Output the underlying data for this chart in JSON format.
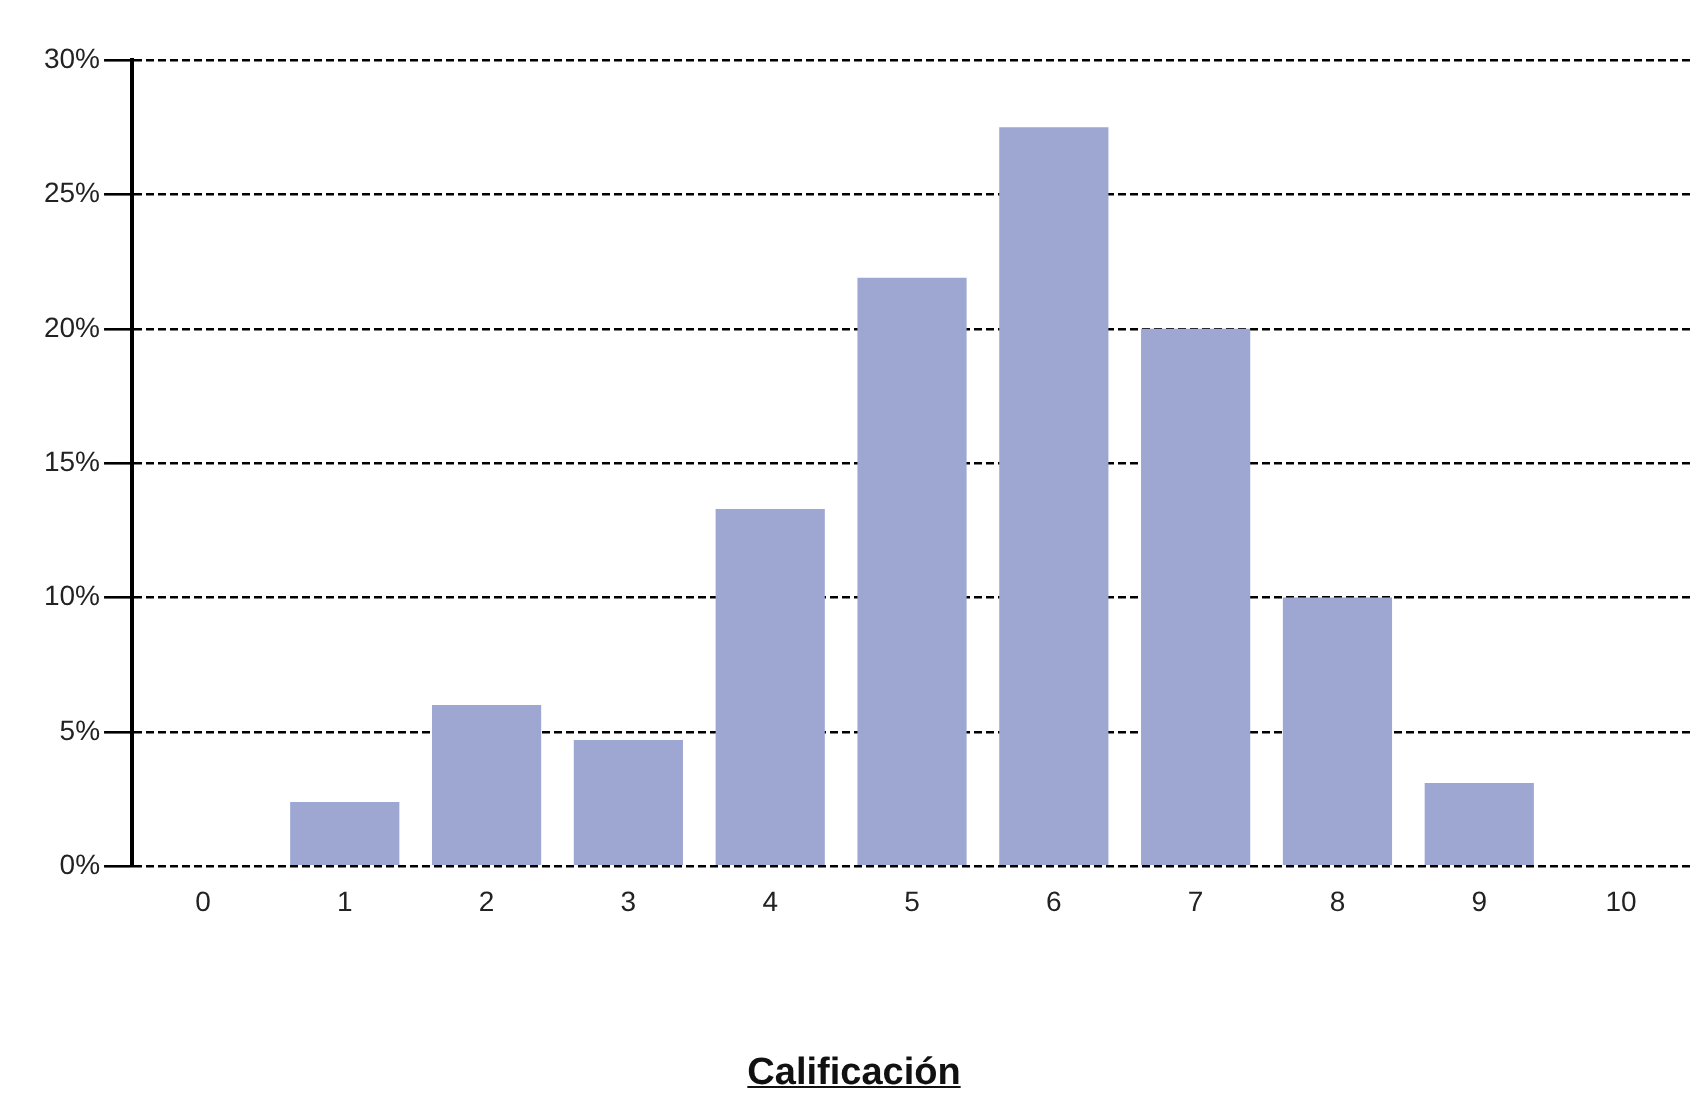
{
  "chart_data": {
    "type": "bar",
    "xlabel": "Calificación",
    "categories": [
      "0",
      "1",
      "2",
      "3",
      "4",
      "5",
      "6",
      "7",
      "8",
      "9",
      "10"
    ],
    "values": [
      0,
      2.4,
      6.0,
      4.7,
      13.3,
      21.9,
      27.5,
      20.0,
      10.0,
      3.1,
      0
    ],
    "color": "#9ea6d2",
    "ylim": [
      0,
      30
    ],
    "yticks": [
      {
        "value": 0,
        "label": "0%"
      },
      {
        "value": 5,
        "label": "5%"
      },
      {
        "value": 10,
        "label": "10%"
      },
      {
        "value": 15,
        "label": "15%"
      },
      {
        "value": 20,
        "label": "20%"
      },
      {
        "value": 25,
        "label": "25%"
      },
      {
        "value": 30,
        "label": "30%"
      }
    ],
    "grid": "y",
    "legend": false
  }
}
